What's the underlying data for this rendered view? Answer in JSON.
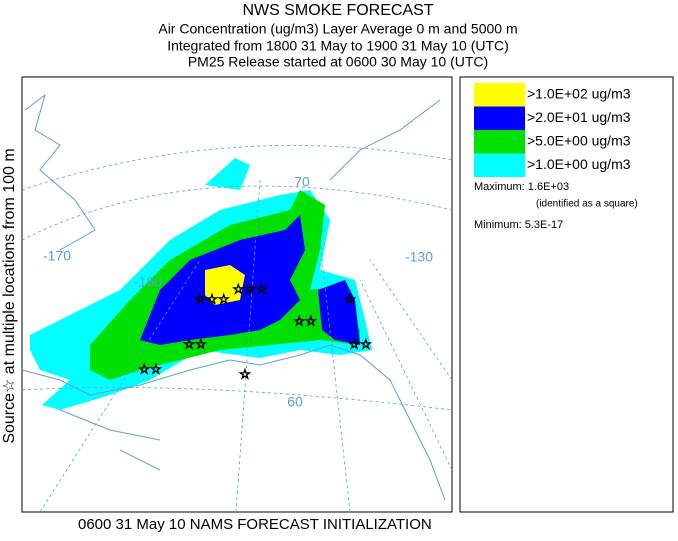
{
  "header": {
    "lines": [
      "NWS SMOKE FORECAST",
      "Air Concentration (ug/m3) Layer Average    0 m and  5000 m",
      "Integrated from 1800 31 May to 1900 31 May 10 (UTC)",
      "PM25 Release started at 0600 30 May 10 (UTC)"
    ]
  },
  "map": {
    "graticule_labels": [
      "-170",
      "-160",
      "-130",
      "70",
      "60"
    ],
    "side_label": "Source☆ at multiple locations   from   100 m",
    "footer": "0600 31 May 10 NAMS FORECAST INITIALIZATION"
  },
  "legend": {
    "items": [
      {
        "label": ">1.0E+02 ug/m3",
        "color": "#ffff00"
      },
      {
        "label": ">2.0E+01 ug/m3",
        "color": "#0000ff"
      },
      {
        "label": ">5.0E+00 ug/m3",
        "color": "#00e000"
      },
      {
        "label": ">1.0E+00 ug/m3",
        "color": "#00ffff"
      }
    ],
    "maximum": "Maximum: 1.6E+03",
    "maximum_note": "(identified as a square)",
    "minimum": "Minimum: 5.3E-17"
  }
}
